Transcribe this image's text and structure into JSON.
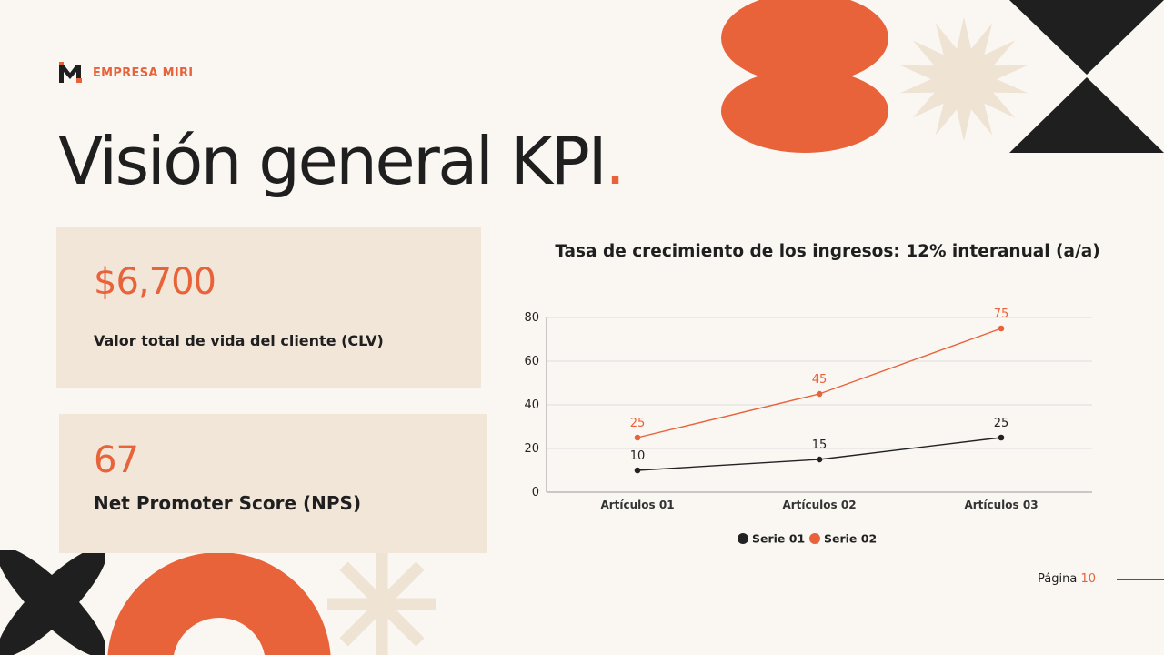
{
  "brand": {
    "name": "EMPRESA MIRI"
  },
  "page": {
    "title": "Visión general KPI",
    "title_dot": "."
  },
  "kpis": [
    {
      "value": "$6,700",
      "label": "Valor total de vida del cliente (CLV)"
    },
    {
      "value": "67",
      "label": "Net Promoter Score (NPS)"
    }
  ],
  "footer": {
    "label": "Página",
    "number": "10"
  },
  "colors": {
    "accent": "#e8623a",
    "dark": "#1f1f1f",
    "card": "#f2e6d9",
    "background": "#faf7f3",
    "beige_shape": "#efe3d3"
  },
  "icons": [
    "logo-m-icon",
    "x-shape",
    "arch-shape",
    "asterisk-shape",
    "lens-shape",
    "starburst-shape",
    "bowtie-shape"
  ],
  "chart_data": {
    "type": "line",
    "title": "Tasa de crecimiento de los ingresos: 12% interanual (a/a)",
    "categories": [
      "Artículos 01",
      "Artículos 02",
      "Artículos 03"
    ],
    "series": [
      {
        "name": "Serie 01",
        "values": [
          10,
          15,
          25
        ],
        "color": "#222222"
      },
      {
        "name": "Serie 02",
        "values": [
          25,
          45,
          75
        ],
        "color": "#e8623a"
      }
    ],
    "ylim": [
      0,
      80
    ],
    "yticks": [
      0,
      20,
      40,
      60,
      80
    ],
    "grid": true,
    "legend": "bottom",
    "data_labels": true
  }
}
